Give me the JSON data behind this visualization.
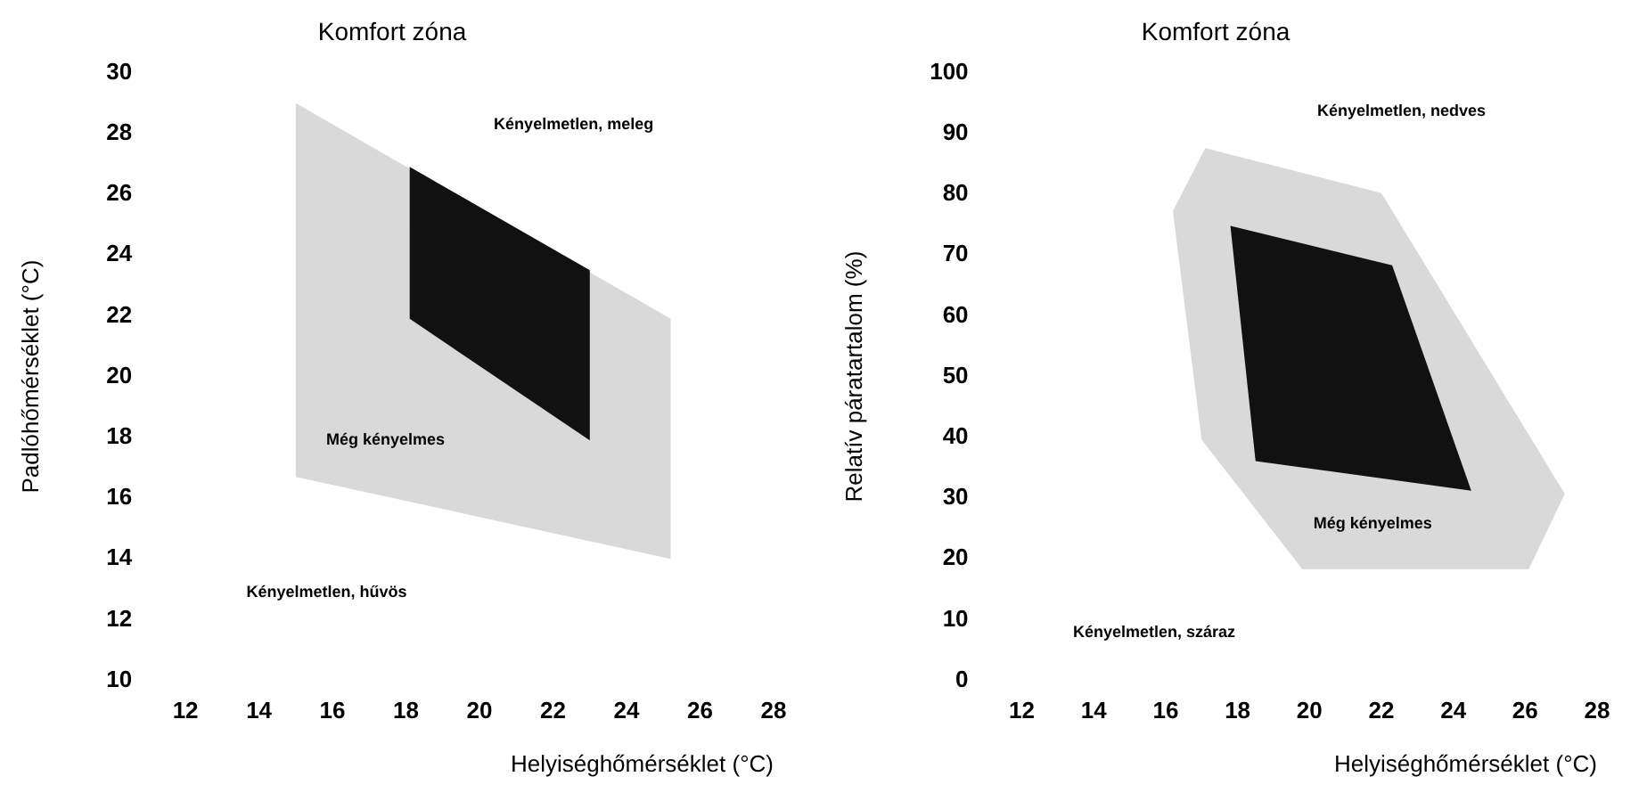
{
  "chart_data": [
    {
      "type": "area",
      "title": "Komfort zóna",
      "xlabel": "Helyiséghőmérséklet (°C)",
      "ylabel": "Padlóhőmérséklet (°C)",
      "xlim": [
        12,
        28
      ],
      "xticks": [
        12,
        14,
        16,
        18,
        20,
        22,
        24,
        26,
        28
      ],
      "ylim": [
        10,
        30
      ],
      "yticks": [
        10,
        12,
        14,
        16,
        18,
        20,
        22,
        24,
        26,
        28,
        30
      ],
      "grid": false,
      "legend": false,
      "marker": "none",
      "series": [
        {
          "color": "#d9d9d9",
          "x": [
            15.0,
            25.2,
            25.2,
            15.0,
            15.0
          ],
          "values": [
            29.0,
            21.9,
            14.0,
            16.7,
            29.0
          ]
        },
        {
          "color": "#111111",
          "x": [
            18.1,
            23.0,
            23.0,
            18.1,
            18.1
          ],
          "values": [
            26.9,
            23.5,
            17.9,
            21.9,
            26.9
          ]
        }
      ],
      "annotations": [
        "Kényelmetlen, meleg",
        "Még kényelmes",
        "Kényelmetlen, hűvös"
      ]
    },
    {
      "type": "area",
      "title": "Komfort zóna",
      "xlabel": "Helyiséghőmérséklet (°C)",
      "ylabel": "Relatív páratartalom (%)",
      "xlim": [
        12,
        28
      ],
      "xticks": [
        12,
        14,
        16,
        18,
        20,
        22,
        24,
        26,
        28
      ],
      "ylim": [
        0,
        100
      ],
      "yticks": [
        0,
        10,
        20,
        30,
        40,
        50,
        60,
        70,
        80,
        90,
        100
      ],
      "grid": false,
      "legend": false,
      "marker": "none",
      "series": [
        {
          "color": "#d9d9d9",
          "x": [
            17.1,
            22.0,
            27.1,
            26.1,
            19.8,
            17.0,
            16.2,
            17.1
          ],
          "values": [
            87.6,
            80.2,
            30.7,
            18.3,
            18.3,
            39.6,
            77.2,
            87.6
          ]
        },
        {
          "color": "#111111",
          "x": [
            17.8,
            22.3,
            24.5,
            18.5,
            17.8
          ],
          "values": [
            74.8,
            68.3,
            31.2,
            36.1,
            74.8
          ]
        }
      ],
      "annotations": [
        "Kényelmetlen, nedves",
        "Még kényelmes",
        "Kényelmetlen, száraz"
      ]
    }
  ]
}
